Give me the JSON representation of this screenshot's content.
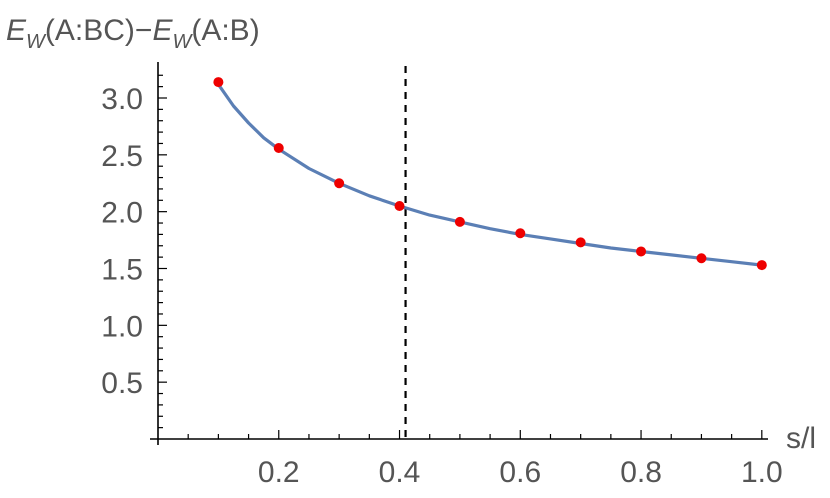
{
  "chart_data": {
    "type": "line",
    "ylabel_parts": {
      "e1": "E",
      "sub1": "W",
      "arg1": "(A:BC)",
      "minus": "−",
      "e2": "E",
      "sub2": "W",
      "arg2": "(A:B)"
    },
    "xlabel": "s/l",
    "x_ticks": [
      0.2,
      0.4,
      0.6,
      0.8,
      1.0
    ],
    "x_tick_labels": [
      "0.2",
      "0.4",
      "0.6",
      "0.8",
      "1.0"
    ],
    "y_ticks": [
      0.5,
      1.0,
      1.5,
      2.0,
      2.5,
      3.0
    ],
    "y_tick_labels": [
      "0.5",
      "1.0",
      "1.5",
      "2.0",
      "2.5",
      "3.0"
    ],
    "xlim": [
      0,
      1.0
    ],
    "ylim": [
      0,
      3.2
    ],
    "series": [
      {
        "style": "points",
        "color": "#ee0000",
        "x": [
          0.1,
          0.2,
          0.3,
          0.4,
          0.5,
          0.6,
          0.7,
          0.8,
          0.9,
          1.0
        ],
        "y": [
          3.14,
          2.56,
          2.25,
          2.05,
          1.91,
          1.81,
          1.73,
          1.65,
          1.59,
          1.53
        ]
      },
      {
        "style": "line",
        "color": "#5b7fb5",
        "x": [
          0.1,
          0.125,
          0.15,
          0.175,
          0.2,
          0.25,
          0.3,
          0.35,
          0.4,
          0.45,
          0.5,
          0.55,
          0.6,
          0.65,
          0.7,
          0.75,
          0.8,
          0.85,
          0.9,
          0.95,
          1.0
        ],
        "y": [
          3.12,
          2.93,
          2.78,
          2.65,
          2.55,
          2.38,
          2.25,
          2.14,
          2.05,
          1.97,
          1.91,
          1.85,
          1.8,
          1.76,
          1.72,
          1.68,
          1.65,
          1.62,
          1.59,
          1.56,
          1.53
        ]
      }
    ],
    "vline_x": 0.41,
    "axis_color": "#000000",
    "label_color": "#555555",
    "grid": false
  }
}
